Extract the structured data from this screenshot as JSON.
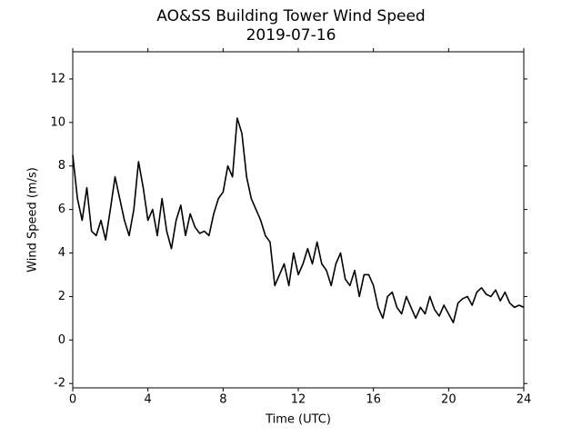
{
  "chart_data": {
    "type": "line",
    "title": "AO&SS Building Tower Wind Speed",
    "subtitle": "2019-07-16",
    "x_label": "Time (UTC)",
    "y_label": "Wind Speed (m/s)",
    "x": [
      0,
      0.25,
      0.5,
      0.75,
      1,
      1.25,
      1.5,
      1.75,
      2,
      2.25,
      2.5,
      2.75,
      3,
      3.25,
      3.5,
      3.75,
      4,
      4.25,
      4.5,
      4.75,
      5,
      5.25,
      5.5,
      5.75,
      6,
      6.25,
      6.5,
      6.75,
      7,
      7.25,
      7.5,
      7.75,
      8,
      8.25,
      8.5,
      8.75,
      9,
      9.25,
      9.5,
      9.75,
      10,
      10.25,
      10.5,
      10.75,
      11,
      11.25,
      11.5,
      11.75,
      12,
      12.25,
      12.5,
      12.75,
      13,
      13.25,
      13.5,
      13.75,
      14,
      14.25,
      14.5,
      14.75,
      15,
      15.25,
      15.5,
      15.75,
      16,
      16.25,
      16.5,
      16.75,
      17,
      17.25,
      17.5,
      17.75,
      18,
      18.25,
      18.5,
      18.75,
      19,
      19.25,
      19.5,
      19.75,
      20,
      20.25,
      20.5,
      20.75,
      21,
      21.25,
      21.5,
      21.75,
      22,
      22.25,
      22.5,
      22.75,
      23,
      23.25,
      23.5,
      23.75,
      24
    ],
    "series": [
      {
        "name": "Wind Speed",
        "color": "#000000",
        "values": [
          8.5,
          6.5,
          5.5,
          7,
          5,
          4.8,
          5.5,
          4.6,
          6,
          7.5,
          6.5,
          5.5,
          4.8,
          6,
          8.2,
          7,
          5.5,
          6,
          4.8,
          6.5,
          5,
          4.2,
          5.5,
          6.2,
          4.8,
          5.8,
          5.2,
          4.9,
          5,
          4.8,
          5.8,
          6.5,
          6.8,
          8,
          7.5,
          10.2,
          9.5,
          7.5,
          6.5,
          6,
          5.5,
          4.8,
          4.5,
          2.5,
          3,
          3.5,
          2.5,
          4,
          3,
          3.5,
          4.2,
          3.5,
          4.5,
          3.5,
          3.2,
          2.5,
          3.5,
          4,
          2.8,
          2.5,
          3.2,
          2,
          3,
          3,
          2.5,
          1.5,
          1,
          2,
          2.2,
          1.5,
          1.2,
          2,
          1.5,
          1,
          1.5,
          1.2,
          2,
          1.4,
          1.1,
          1.6,
          1.2,
          0.8,
          1.7,
          1.9,
          2,
          1.6,
          2.2,
          2.4,
          2.1,
          2,
          2.3,
          1.8,
          2.2,
          1.7,
          1.5,
          1.6,
          1.5
        ]
      }
    ],
    "xlim": [
      0,
      24
    ],
    "xticks": [
      0,
      4,
      8,
      12,
      16,
      20,
      24
    ],
    "ylim": [
      -2.2,
      13.25
    ],
    "yticks": [
      -2,
      0,
      2,
      4,
      6,
      8,
      10,
      12
    ],
    "grid": false
  }
}
